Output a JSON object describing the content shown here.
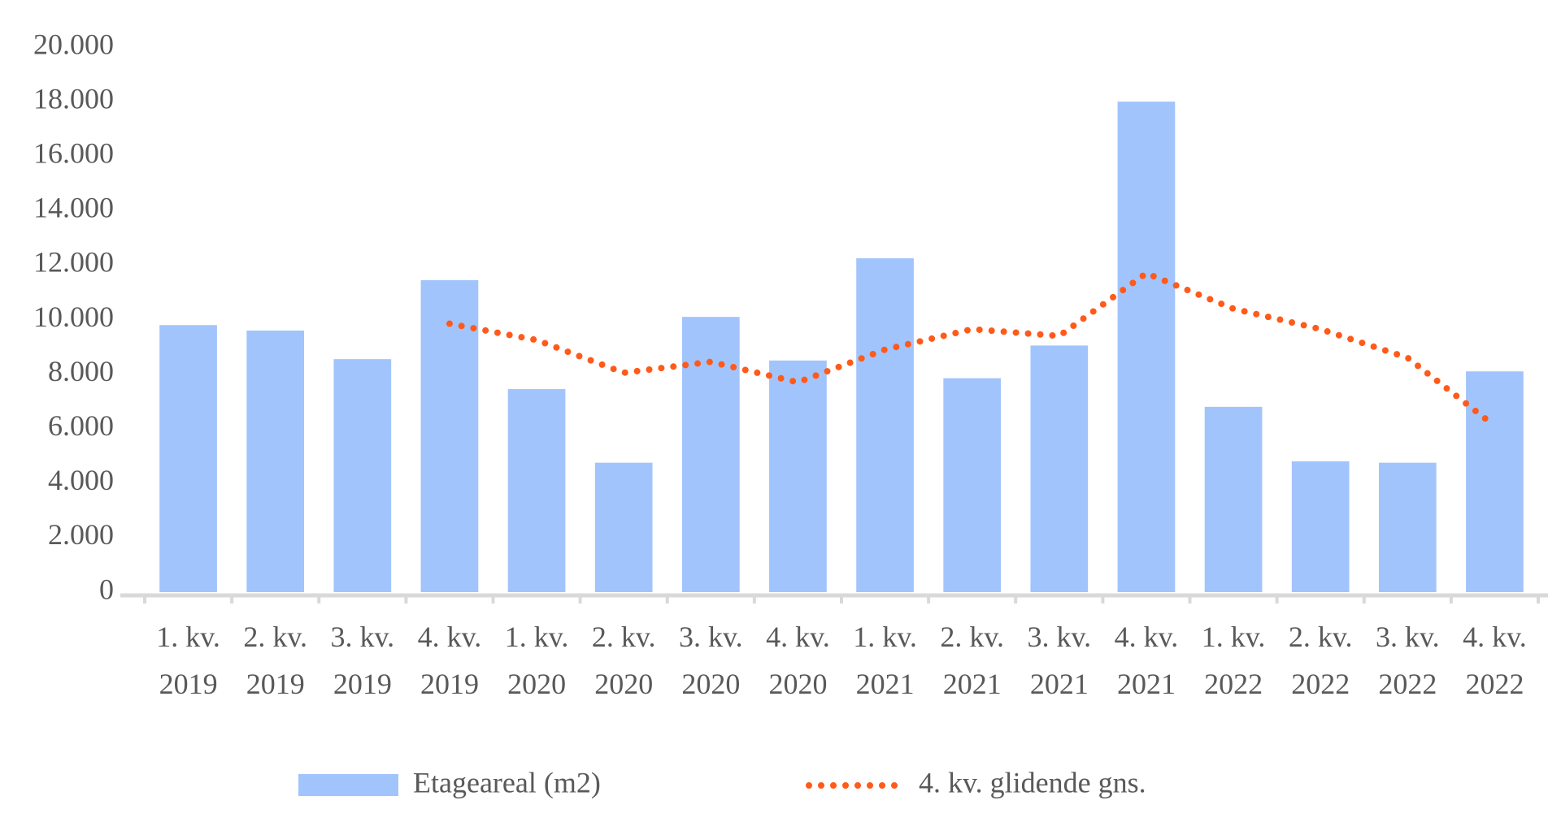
{
  "chart_data": {
    "type": "bar",
    "categories": [
      "1. kv. 2019",
      "2. kv. 2019",
      "3. kv. 2019",
      "4. kv. 2019",
      "1. kv. 2020",
      "2. kv. 2020",
      "3. kv. 2020",
      "4. kv. 2020",
      "1. kv. 2021",
      "2. kv. 2021",
      "3. kv. 2021",
      "4. kv. 2021",
      "1. kv. 2022",
      "2. kv. 2022",
      "3. kv. 2022",
      "4. kv. 2022"
    ],
    "series": [
      {
        "name": "Etageareal (m2)",
        "type": "bar",
        "color": "#a2c4fc",
        "values": [
          9800,
          9600,
          8550,
          11450,
          7450,
          4750,
          10100,
          8500,
          12250,
          7850,
          9050,
          18000,
          6800,
          4800,
          4750,
          8100
        ]
      },
      {
        "name": "4. kv. glidende gns.",
        "type": "line",
        "color": "#ff5a1a",
        "style": "dotted",
        "values": [
          null,
          null,
          null,
          9850,
          9250,
          8050,
          8450,
          7700,
          8900,
          9650,
          9400,
          11700,
          10400,
          9650,
          8600,
          6100
        ]
      }
    ],
    "ylim": [
      0,
      20000
    ],
    "yticks": [
      0,
      {
        "value": 2000,
        "label": "2.000"
      },
      {
        "value": 4000,
        "label": "4.000"
      },
      {
        "value": 6000,
        "label": "6.000"
      },
      {
        "value": 8000,
        "label": "8.000"
      },
      {
        "value": 10000,
        "label": "10.000"
      },
      {
        "value": 12000,
        "label": "12.000"
      },
      {
        "value": 14000,
        "label": "14.000"
      },
      {
        "value": 16000,
        "label": "16.000"
      },
      {
        "value": 18000,
        "label": "18.000"
      },
      {
        "value": 20000,
        "label": "20.000"
      }
    ],
    "grid": false,
    "legend": "bottom"
  }
}
